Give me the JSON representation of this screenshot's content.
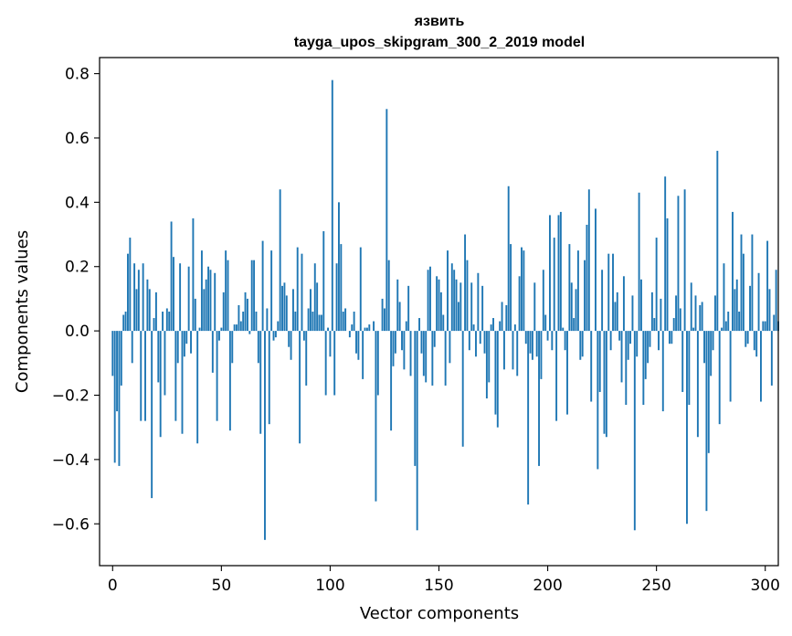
{
  "chart_data": {
    "type": "bar",
    "title": "язвить",
    "subtitle": "tayga_upos_skipgram_300_2_2019 model",
    "xlabel": "Vector components",
    "ylabel": "Components values",
    "xlim": [
      -6,
      306
    ],
    "ylim": [
      -0.73,
      0.85
    ],
    "xticks": [
      0,
      50,
      100,
      150,
      200,
      250,
      300
    ],
    "yticks": [
      -0.6,
      -0.4,
      -0.2,
      0.0,
      0.2,
      0.4,
      0.6,
      0.8
    ],
    "ytick_labels": [
      "−0.6",
      "−0.4",
      "−0.2",
      "0.0",
      "0.2",
      "0.4",
      "0.6",
      "0.8"
    ],
    "color": "#1f77b4",
    "values": [
      -0.14,
      -0.41,
      -0.25,
      -0.42,
      -0.17,
      0.05,
      0.06,
      0.24,
      0.29,
      -0.1,
      0.21,
      0.13,
      0.19,
      -0.28,
      0.21,
      -0.28,
      0.16,
      0.13,
      -0.52,
      0.04,
      0.12,
      -0.16,
      -0.33,
      0.06,
      -0.2,
      0.07,
      0.06,
      0.34,
      0.23,
      -0.28,
      -0.1,
      0.21,
      -0.32,
      -0.08,
      -0.04,
      0.2,
      -0.07,
      0.35,
      0.1,
      -0.35,
      0.01,
      0.25,
      0.13,
      0.16,
      0.2,
      0.19,
      -0.13,
      0.18,
      -0.28,
      -0.03,
      0.01,
      0.12,
      0.25,
      0.22,
      -0.31,
      -0.1,
      0.02,
      0.02,
      0.08,
      0.03,
      0.06,
      0.12,
      0.1,
      -0.01,
      0.22,
      0.22,
      0.06,
      -0.1,
      -0.32,
      0.28,
      -0.65,
      0.07,
      -0.29,
      0.25,
      -0.03,
      -0.02,
      0.03,
      0.44,
      0.14,
      0.15,
      0.11,
      -0.05,
      -0.09,
      0.13,
      0.06,
      0.26,
      -0.35,
      0.24,
      -0.03,
      -0.17,
      0.07,
      0.13,
      0.06,
      0.21,
      0.15,
      0.05,
      0.05,
      0.31,
      -0.2,
      0.01,
      -0.08,
      0.78,
      -0.2,
      0.21,
      0.4,
      0.27,
      0.06,
      0.07,
      0.0,
      -0.02,
      0.02,
      0.06,
      -0.07,
      -0.09,
      0.26,
      -0.15,
      0.01,
      0.01,
      0.02,
      0.0,
      0.03,
      -0.53,
      -0.2,
      0.0,
      0.1,
      0.07,
      0.69,
      0.22,
      -0.31,
      -0.11,
      -0.07,
      0.16,
      0.09,
      -0.06,
      -0.12,
      0.03,
      0.14,
      -0.14,
      0.0,
      -0.42,
      -0.62,
      0.04,
      -0.07,
      -0.14,
      -0.16,
      0.19,
      0.2,
      -0.17,
      -0.05,
      0.17,
      0.16,
      0.12,
      0.05,
      -0.17,
      0.25,
      -0.1,
      0.21,
      0.19,
      0.16,
      0.09,
      0.15,
      -0.36,
      0.3,
      0.22,
      -0.06,
      0.15,
      0.02,
      -0.08,
      0.18,
      -0.04,
      0.14,
      -0.07,
      -0.21,
      -0.16,
      0.02,
      0.04,
      -0.26,
      -0.3,
      0.03,
      0.09,
      -0.12,
      0.08,
      0.45,
      0.27,
      -0.12,
      0.02,
      -0.14,
      0.17,
      0.26,
      0.25,
      -0.04,
      -0.54,
      -0.07,
      -0.09,
      0.15,
      -0.08,
      -0.42,
      -0.15,
      0.19,
      0.05,
      -0.03,
      0.36,
      -0.06,
      0.29,
      -0.28,
      0.36,
      0.37,
      0.01,
      -0.06,
      -0.26,
      0.27,
      0.15,
      0.04,
      0.13,
      0.25,
      -0.09,
      -0.08,
      0.22,
      0.33,
      0.44,
      -0.22,
      0.0,
      0.38,
      -0.43,
      -0.19,
      0.19,
      -0.32,
      -0.33,
      0.24,
      -0.06,
      0.24,
      0.09,
      0.12,
      -0.03,
      -0.16,
      0.17,
      -0.23,
      -0.09,
      -0.04,
      0.11,
      -0.62,
      -0.08,
      0.43,
      0.16,
      -0.23,
      -0.15,
      -0.1,
      -0.05,
      0.12,
      0.04,
      0.29,
      -0.06,
      0.1,
      -0.25,
      0.48,
      0.35,
      -0.04,
      -0.04,
      0.04,
      0.11,
      0.42,
      0.07,
      -0.19,
      0.44,
      -0.6,
      -0.23,
      0.15,
      0.01,
      0.11,
      -0.33,
      0.08,
      0.09,
      -0.1,
      -0.56,
      -0.38,
      -0.14,
      -0.06,
      0.11,
      0.56,
      -0.29,
      0.01,
      0.21,
      0.03,
      0.06,
      -0.22,
      0.37,
      0.13,
      0.16,
      0.06,
      0.3,
      0.24,
      -0.05,
      -0.04,
      0.14,
      0.3,
      -0.06,
      -0.08,
      0.18,
      -0.22,
      0.03,
      0.03,
      0.28,
      0.13,
      -0.17,
      0.05,
      0.19,
      0.03
    ]
  }
}
